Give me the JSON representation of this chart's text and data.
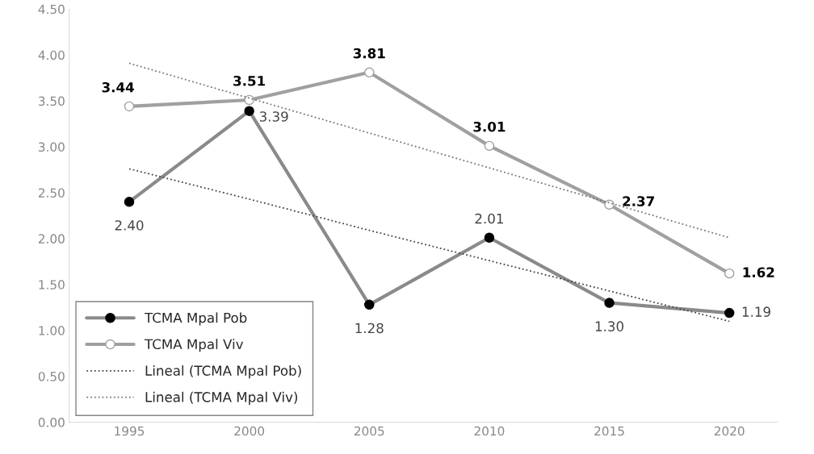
{
  "chart_data": {
    "type": "line",
    "x": [
      1995,
      2000,
      2005,
      2010,
      2015,
      2020
    ],
    "xlim": [
      1992.5,
      2022
    ],
    "xticks": [
      1995,
      2000,
      2005,
      2010,
      2015,
      2020
    ],
    "ylim": [
      0,
      4.5
    ],
    "yticks": [
      {
        "value": 0,
        "label": "0.00"
      },
      {
        "value": 0.5,
        "label": "0.50"
      },
      {
        "value": 1,
        "label": "1.00"
      },
      {
        "value": 1.5,
        "label": "1.50"
      },
      {
        "value": 2,
        "label": "2.00"
      },
      {
        "value": 2.5,
        "label": "2.50"
      },
      {
        "value": 3,
        "label": "3.00"
      },
      {
        "value": 3.5,
        "label": "3.50"
      },
      {
        "value": 4,
        "label": "4.00"
      },
      {
        "value": 4.5,
        "label": "4.50"
      }
    ],
    "grid": false,
    "legend": "bottom left",
    "series": [
      {
        "name": "TCMA Mpal Pob",
        "color": "#8a8a8a",
        "marker": "circle",
        "line_style": "solid",
        "values": [
          2.4,
          3.39,
          1.28,
          2.01,
          1.3,
          1.19
        ],
        "value_labels": [
          "2.40",
          "3.39",
          "1.28",
          "2.01",
          "1.30",
          "1.19"
        ]
      },
      {
        "name": "TCMA Mpal Viv",
        "color": "#a0a0a0",
        "marker": "circle",
        "line_style": "solid",
        "values": [
          3.44,
          3.51,
          3.81,
          3.01,
          2.37,
          1.62
        ],
        "value_labels": [
          "3.44",
          "3.51",
          "3.81",
          "3.01",
          "2.37",
          "1.62"
        ]
      },
      {
        "name": "Lineal (TCMA Mpal Pob)",
        "color": "#444444",
        "marker": "none",
        "line_style": "dotted",
        "values": [
          2.76,
          2.43,
          2.09,
          1.76,
          1.43,
          1.1
        ]
      },
      {
        "name": "Lineal (TCMA Mpal Viv)",
        "color": "#777777",
        "marker": "none",
        "line_style": "dotted",
        "values": [
          3.91,
          3.53,
          3.15,
          2.77,
          2.39,
          2.01
        ]
      }
    ]
  }
}
